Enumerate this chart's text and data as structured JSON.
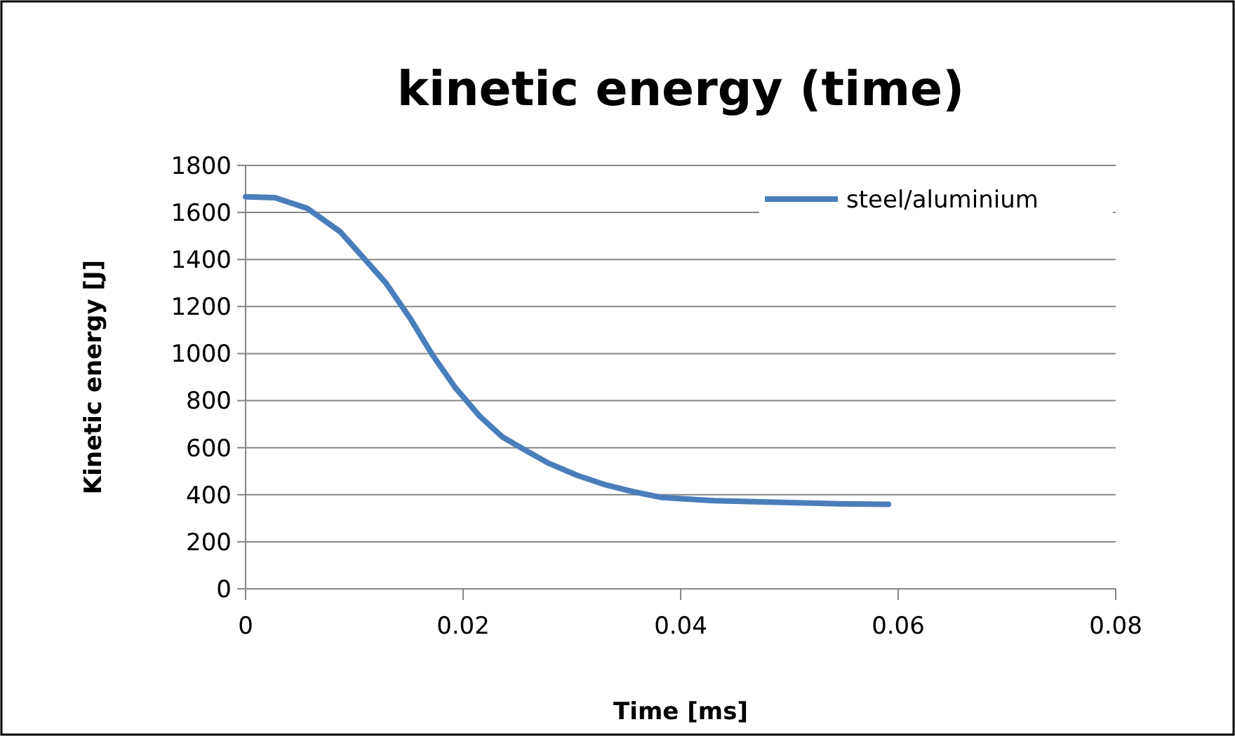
{
  "chart_data": {
    "type": "line",
    "title": "kinetic energy (time)",
    "xlabel": "Time [ms]",
    "ylabel": "Kinetic energy [J]",
    "xlim": [
      0,
      0.08
    ],
    "xticks": [
      0,
      0.02,
      0.04,
      0.06,
      0.08
    ],
    "ylim": [
      0,
      1800
    ],
    "yticks": [
      0,
      200,
      400,
      600,
      800,
      1000,
      1200,
      1400,
      1600,
      1800
    ],
    "grid": "y",
    "legend": "top right",
    "series": [
      {
        "name": "steel/aluminium",
        "color": "#4a7ebb",
        "x": [
          0,
          0.0027,
          0.0057,
          0.0087,
          0.0108,
          0.0129,
          0.0151,
          0.0172,
          0.0193,
          0.0215,
          0.0236,
          0.0258,
          0.0279,
          0.0305,
          0.0331,
          0.0357,
          0.0383,
          0.043,
          0.0494,
          0.0546,
          0.0591
        ],
        "values": [
          1667,
          1663,
          1617,
          1518,
          1409,
          1300,
          1152,
          993,
          854,
          735,
          646,
          587,
          533,
          482,
          442,
          412,
          388,
          375,
          367,
          361,
          359
        ]
      }
    ]
  }
}
